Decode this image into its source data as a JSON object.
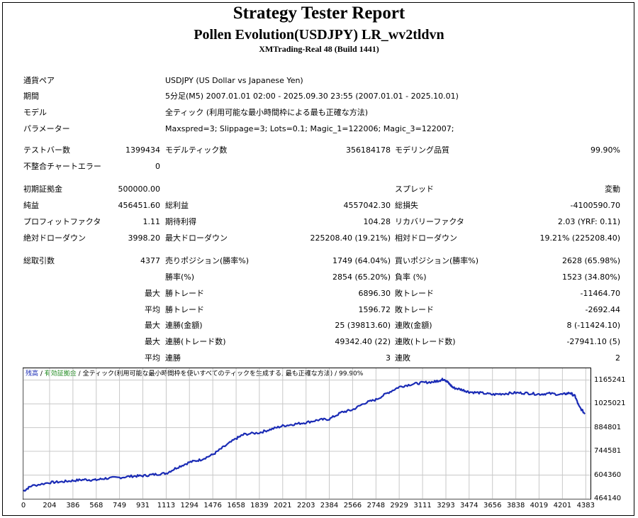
{
  "report": {
    "title": "Strategy Tester Report",
    "expert": "Pollen Evolution(USDJPY) LR_wv2tldvn",
    "server": "XMTrading-Real 48 (Build 1441)"
  },
  "settings": [
    {
      "label": "通貨ペア",
      "value": "USDJPY (US Dollar vs Japanese Yen)"
    },
    {
      "label": "期間",
      "value": "5分足(M5) 2007.01.01 02:00 - 2025.09.30 23:55 (2007.01.01 - 2025.10.01)"
    },
    {
      "label": "モデル",
      "value": "全ティック (利用可能な最小時間枠による最も正確な方法)"
    },
    {
      "label": "パラメーター",
      "value": "Maxspred=3; Slippage=3; Lots=0.1; Magic_1=122006; Magic_3=122007;"
    }
  ],
  "stats": {
    "bars": {
      "label": "テストバー数",
      "value": "1399434"
    },
    "ticks": {
      "label": "モデルティック数",
      "value": "356184178"
    },
    "quality": {
      "label": "モデリング品質",
      "value": "99.90%"
    },
    "mismatch": {
      "label": "不整合チャートエラー",
      "value": "0"
    },
    "deposit": {
      "label": "初期証拠金",
      "value": "500000.00"
    },
    "spread": {
      "label": "スプレッド",
      "value": "変動"
    },
    "net_profit": {
      "label": "純益",
      "value": "456451.60"
    },
    "gross_profit": {
      "label": "総利益",
      "value": "4557042.30"
    },
    "gross_loss": {
      "label": "総損失",
      "value": "-4100590.70"
    },
    "profit_factor": {
      "label": "プロフィットファクタ",
      "value": "1.11"
    },
    "expected_payoff": {
      "label": "期待利得",
      "value": "104.28"
    },
    "recovery_factor": {
      "label": "リカバリーファクタ",
      "value": "2.03 (YRF: 0.11)"
    },
    "abs_drawdown": {
      "label": "絶対ドローダウン",
      "value": "3998.20"
    },
    "max_drawdown": {
      "label": "最大ドローダウン",
      "value": "225208.40 (19.21%)"
    },
    "rel_drawdown": {
      "label": "相対ドローダウン",
      "value": "19.21% (225208.40)"
    },
    "total_trades": {
      "label": "総取引数",
      "value": "4377"
    },
    "short_positions": {
      "label": "売りポジション(勝率%)",
      "value": "1749 (64.04%)"
    },
    "long_positions": {
      "label": "買いポジション(勝率%)",
      "value": "2628 (65.98%)"
    },
    "win_rate": {
      "label": "勝率(%)",
      "value": "2854 (65.20%)"
    },
    "loss_rate": {
      "label": "負率 (%)",
      "value": "1523 (34.80%)"
    },
    "largest_win": {
      "prefix": "最大",
      "label": "勝トレード",
      "value": "6896.30"
    },
    "largest_loss": {
      "label": "敗トレード",
      "value": "-11464.70"
    },
    "avg_win": {
      "prefix": "平均",
      "label": "勝トレード",
      "value": "1596.72"
    },
    "avg_loss": {
      "label": "敗トレード",
      "value": "-2692.44"
    },
    "max_consec_wins": {
      "prefix": "最大",
      "label": "連勝(金額)",
      "value": "25 (39813.60)"
    },
    "max_consec_losses": {
      "label": "連敗(金額)",
      "value": "8 (-11424.10)"
    },
    "max_consec_profit": {
      "prefix": "最大",
      "label": "連勝(トレード数)",
      "value": "49342.40 (22)"
    },
    "max_consec_loss": {
      "label": "連敗(トレード数)",
      "value": "-27941.10 (5)"
    },
    "avg_consec_wins": {
      "prefix": "平均",
      "label": "連勝",
      "value": "3"
    },
    "avg_consec_losses": {
      "label": "連敗",
      "value": "2"
    }
  },
  "chart_data": {
    "type": "line",
    "legend": {
      "balance": "残高",
      "sep1": " / ",
      "volume": "有効証拠金",
      "sep2": " / ",
      "model": "全ティック(利用可能な最小時間枠を使いすべてのティックを生成する, 最も正確な方法)",
      "sep3": " / ",
      "quality": "99.90%"
    },
    "colors": {
      "balance": "#1a2bb5",
      "grid": "#c8c8c8"
    },
    "grid": true,
    "xlim": [
      0,
      4420
    ],
    "ylim": [
      464140,
      1235000
    ],
    "x_ticks": [
      0,
      204,
      386,
      568,
      749,
      931,
      1113,
      1294,
      1476,
      1658,
      1839,
      2021,
      2203,
      2384,
      2566,
      2748,
      2929,
      3111,
      3293,
      3474,
      3656,
      3838,
      4019,
      4201,
      4383
    ],
    "y_ticks": [
      464140,
      604360,
      744581,
      884801,
      1025021,
      1165241
    ],
    "series": [
      {
        "x": [
          0,
          60,
          200,
          300,
          390,
          480,
          560,
          640,
          749,
          850,
          931,
          1020,
          1113,
          1200,
          1294,
          1380,
          1476,
          1560,
          1658,
          1720,
          1839,
          1930,
          2021,
          2110,
          2203,
          2300,
          2384,
          2480,
          2566,
          2660,
          2748,
          2840,
          2929,
          3020,
          3111,
          3200,
          3250,
          3280,
          3310,
          3350,
          3420,
          3474,
          3560,
          3656,
          3740,
          3838,
          3930,
          4019,
          4100,
          4201,
          4260,
          4300,
          4330,
          4377
        ],
        "y": [
          510000,
          540000,
          560000,
          565000,
          572000,
          578000,
          575000,
          585000,
          590000,
          598000,
          600000,
          608000,
          615000,
          650000,
          680000,
          695000,
          725000,
          770000,
          820000,
          845000,
          855000,
          875000,
          895000,
          905000,
          915000,
          930000,
          935000,
          975000,
          990000,
          1030000,
          1050000,
          1090000,
          1125000,
          1140000,
          1150000,
          1155000,
          1165000,
          1172000,
          1150000,
          1120000,
          1108000,
          1095000,
          1090000,
          1080000,
          1085000,
          1090000,
          1088000,
          1082000,
          1086000,
          1080000,
          1090000,
          1070000,
          1010000,
          965000
        ]
      }
    ]
  }
}
